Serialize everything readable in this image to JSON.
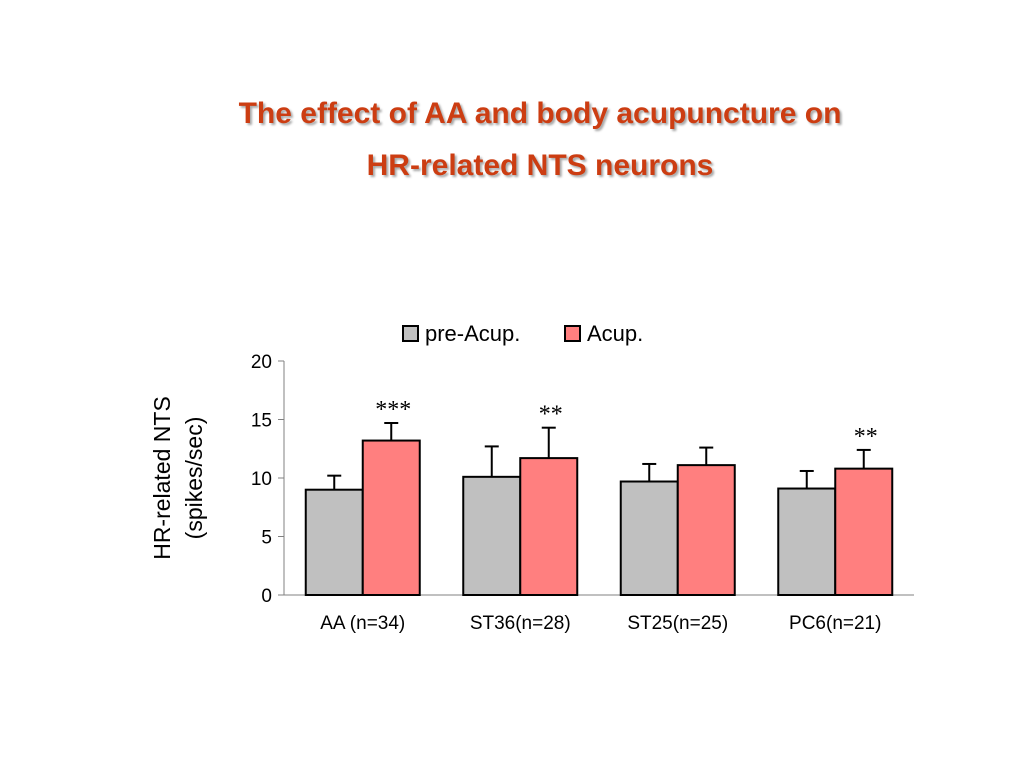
{
  "title_lines": [
    "The effect of AA and body acupuncture on",
    "HR-related NTS neurons"
  ],
  "chart_data": {
    "type": "bar",
    "ylabel_lines": [
      "HR-related NTS",
      "(spikes/sec)"
    ],
    "ylim": [
      0,
      20
    ],
    "yticks": [
      0,
      5,
      10,
      15,
      20
    ],
    "categories": [
      "AA (n=34)",
      "ST36(n=28)",
      "ST25(n=25)",
      "PC6(n=21)"
    ],
    "series": [
      {
        "name": "pre-Acup.",
        "color": "#c0c0c0",
        "values": [
          9.0,
          10.1,
          9.7,
          9.1
        ],
        "error": [
          1.2,
          2.6,
          1.5,
          1.5
        ]
      },
      {
        "name": "Acup.",
        "color": "#ff7f7f",
        "values": [
          13.2,
          11.7,
          11.1,
          10.8
        ],
        "error": [
          1.5,
          2.6,
          1.5,
          1.6
        ]
      }
    ],
    "annotations": [
      {
        "category": 0,
        "series": 1,
        "text": "***"
      },
      {
        "category": 1,
        "series": 1,
        "text": "**"
      },
      {
        "category": 3,
        "series": 1,
        "text": "**"
      }
    ],
    "legend_position": "top",
    "grid": false
  }
}
